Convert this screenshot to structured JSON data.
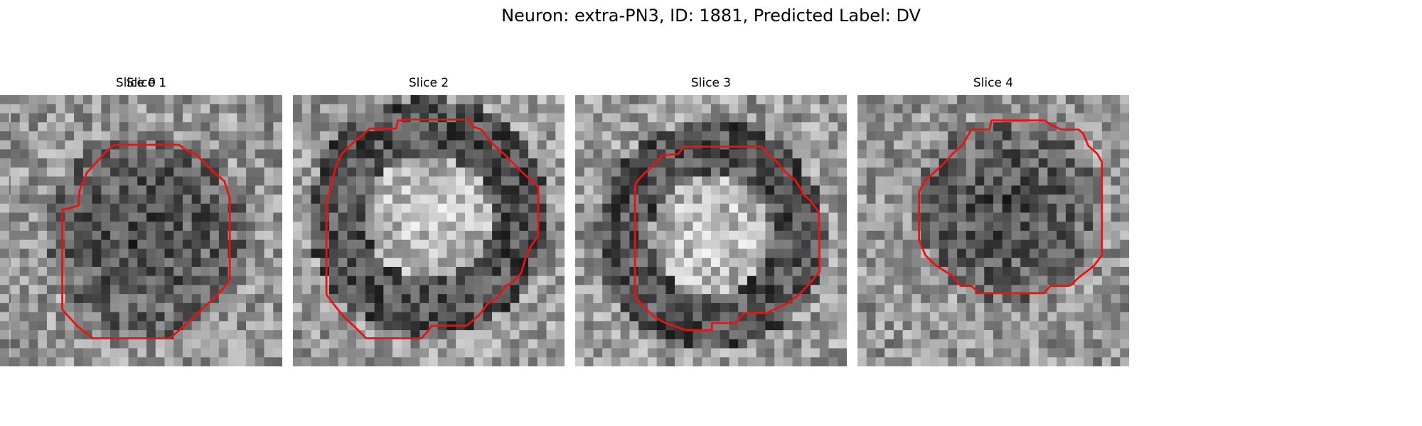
{
  "figure": {
    "title": "Neuron: extra-PN3, ID: 1881, Predicted Label: DV"
  },
  "contour_color": "#ee1111",
  "slices": [
    {
      "label": "Slice 0",
      "seed": 11,
      "dark_center": [
        0.52,
        0.5
      ],
      "dark_radius": 0.3,
      "bright_interior": false
    },
    {
      "label": "Slice 1",
      "seed": 23,
      "dark_center": [
        0.5,
        0.52
      ],
      "dark_radius": 0.38,
      "bright_interior": false
    },
    {
      "label": "Slice 2",
      "seed": 37,
      "dark_center": [
        0.5,
        0.45
      ],
      "dark_radius": 0.42,
      "bright_interior": true
    },
    {
      "label": "Slice 3",
      "seed": 41,
      "dark_center": [
        0.5,
        0.52
      ],
      "dark_radius": 0.4,
      "bright_interior": true
    },
    {
      "label": "Slice 4",
      "seed": 53,
      "dark_center": [
        0.55,
        0.42
      ],
      "dark_radius": 0.34,
      "bright_interior": false
    }
  ]
}
